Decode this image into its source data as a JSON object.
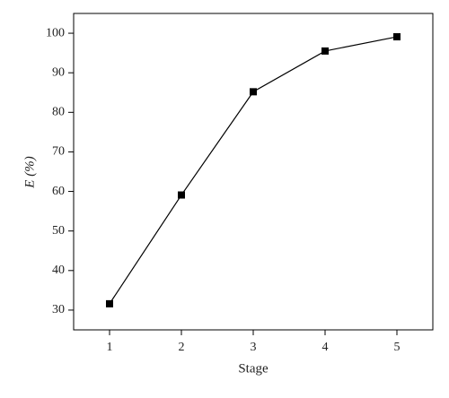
{
  "chart_data": {
    "type": "line",
    "x_label": "Stage",
    "y_label": "E (%)",
    "x": [
      1,
      2,
      3,
      4,
      5
    ],
    "series": [
      {
        "color": "#000000",
        "values": [
          31.6,
          59.1,
          85.2,
          95.5,
          99.1
        ]
      }
    ],
    "xlim": [
      0.5,
      5.5
    ],
    "xticks": [
      1,
      2,
      3,
      4,
      5
    ],
    "ylim": [
      25,
      105
    ],
    "yticks": [
      30,
      40,
      50,
      60,
      70,
      80,
      90,
      100
    ],
    "grid": false
  }
}
